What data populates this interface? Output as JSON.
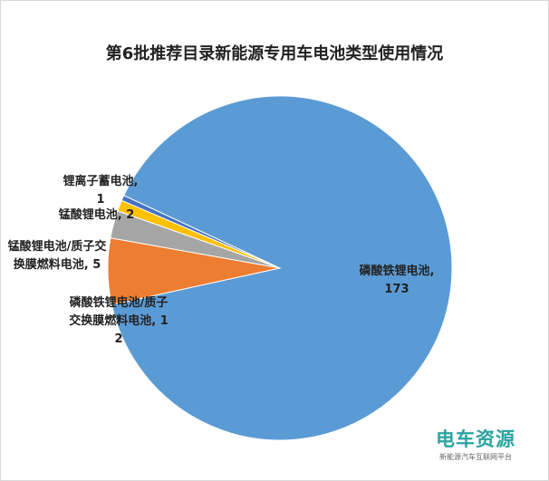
{
  "chart_data": {
    "type": "pie",
    "title": "第6批推荐目录新能源专用车电池类型使用情况",
    "categories": [
      "锂离子蓄电池",
      "锰酸锂电池",
      "锰酸锂电池/质子交换膜燃料电池",
      "磷酸铁锂电池/质子交换膜燃料电池",
      "磷酸铁锂电池"
    ],
    "values": [
      1,
      2,
      5,
      12,
      173
    ],
    "colors": [
      "#4472c4",
      "#ffc000",
      "#a5a5a5",
      "#ed7d31",
      "#5b9bd5"
    ],
    "label_separator": ","
  },
  "watermark": {
    "title": "电车资源",
    "subtitle": "新能源汽车互联网平台"
  }
}
